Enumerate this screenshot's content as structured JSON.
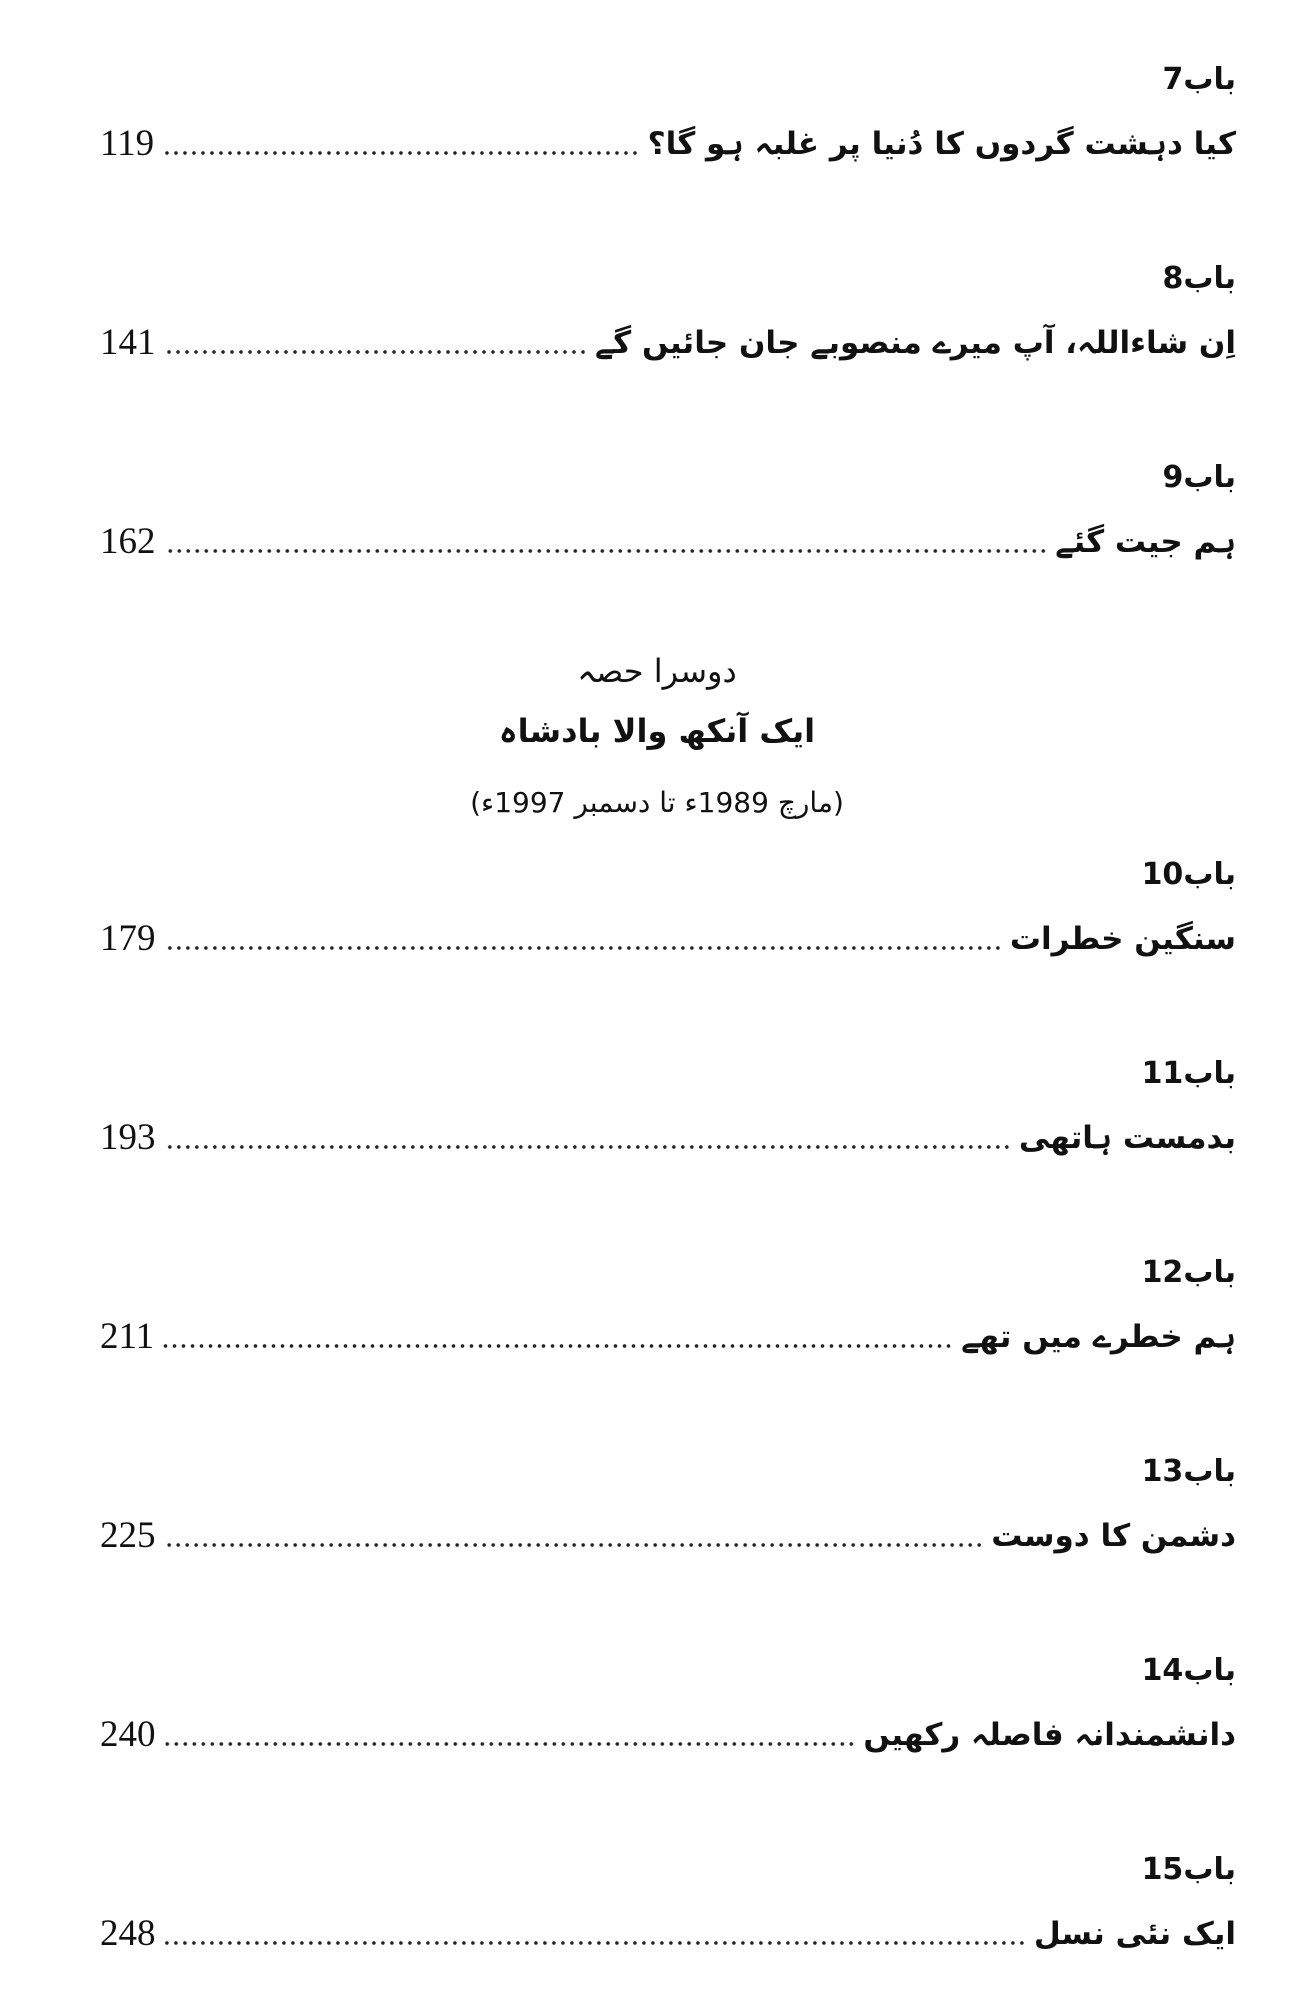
{
  "chapters_part1": [
    {
      "heading": "باب7",
      "title": "کیا دہشت گردوں کا دُنیا پر غلبہ ہو گا؟",
      "page": "119"
    },
    {
      "heading": "باب8",
      "title": "اِن شاءاللہ، آپ میرے منصوبے جان جائیں گے",
      "page": "141"
    },
    {
      "heading": "باب9",
      "title": "ہم جیت گئے",
      "page": "162"
    }
  ],
  "section": {
    "label": "دوسرا حصہ",
    "title": "ایک آنکھ والا بادشاہ",
    "dates": "(مارچ 1989ء تا دسمبر 1997ء)"
  },
  "chapters_part2": [
    {
      "heading": "باب10",
      "title": "سنگین خطرات",
      "page": "179"
    },
    {
      "heading": "باب11",
      "title": "بدمست ہاتھی",
      "page": "193"
    },
    {
      "heading": "باب12",
      "title": "ہم خطرے میں تھے",
      "page": "211"
    },
    {
      "heading": "باب13",
      "title": "دشمن کا دوست",
      "page": "225"
    },
    {
      "heading": "باب14",
      "title": "دانشمندانہ فاصلہ رکھیں",
      "page": "240"
    },
    {
      "heading": "باب15",
      "title": "ایک نئی نسل",
      "page": "248"
    }
  ]
}
